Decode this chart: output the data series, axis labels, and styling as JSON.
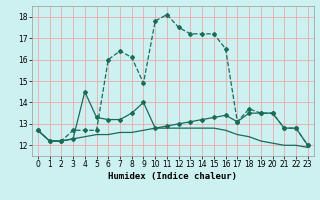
{
  "xlabel": "Humidex (Indice chaleur)",
  "xlim": [
    -0.5,
    23.5
  ],
  "ylim": [
    11.5,
    18.5
  ],
  "yticks": [
    12,
    13,
    14,
    15,
    16,
    17,
    18
  ],
  "xticks": [
    0,
    1,
    2,
    3,
    4,
    5,
    6,
    7,
    8,
    9,
    10,
    11,
    12,
    13,
    14,
    15,
    16,
    17,
    18,
    19,
    20,
    21,
    22,
    23
  ],
  "bg_color": "#cdf0f0",
  "grid_color": "#e8aaaa",
  "line_color": "#1a6b5a",
  "line1_x": [
    0,
    1,
    2,
    3,
    4,
    5,
    6,
    7,
    8,
    9,
    10,
    11,
    12,
    13,
    14,
    15,
    16,
    17,
    18,
    19,
    20,
    21,
    22,
    23
  ],
  "line1_y": [
    12.7,
    12.2,
    12.2,
    12.7,
    12.7,
    12.7,
    16.0,
    16.4,
    16.1,
    14.9,
    17.8,
    18.1,
    17.5,
    17.2,
    17.2,
    17.2,
    16.5,
    13.1,
    13.7,
    13.5,
    13.5,
    12.8,
    12.8,
    12.0
  ],
  "line2_x": [
    0,
    1,
    2,
    3,
    4,
    5,
    6,
    7,
    8,
    9,
    10,
    11,
    12,
    13,
    14,
    15,
    16,
    17,
    18,
    19,
    20,
    21,
    22,
    23
  ],
  "line2_y": [
    12.7,
    12.2,
    12.2,
    12.3,
    14.5,
    13.3,
    13.2,
    13.2,
    13.5,
    14.0,
    12.8,
    12.9,
    13.0,
    13.1,
    13.2,
    13.3,
    13.4,
    13.1,
    13.5,
    13.5,
    13.5,
    12.8,
    12.8,
    12.0
  ],
  "line3_x": [
    0,
    1,
    2,
    3,
    4,
    5,
    6,
    7,
    8,
    9,
    10,
    11,
    12,
    13,
    14,
    15,
    16,
    17,
    18,
    19,
    20,
    21,
    22,
    23
  ],
  "line3_y": [
    12.7,
    12.2,
    12.2,
    12.3,
    12.4,
    12.5,
    12.5,
    12.6,
    12.6,
    12.7,
    12.8,
    12.8,
    12.8,
    12.8,
    12.8,
    12.8,
    12.7,
    12.5,
    12.4,
    12.2,
    12.1,
    12.0,
    12.0,
    11.9
  ]
}
